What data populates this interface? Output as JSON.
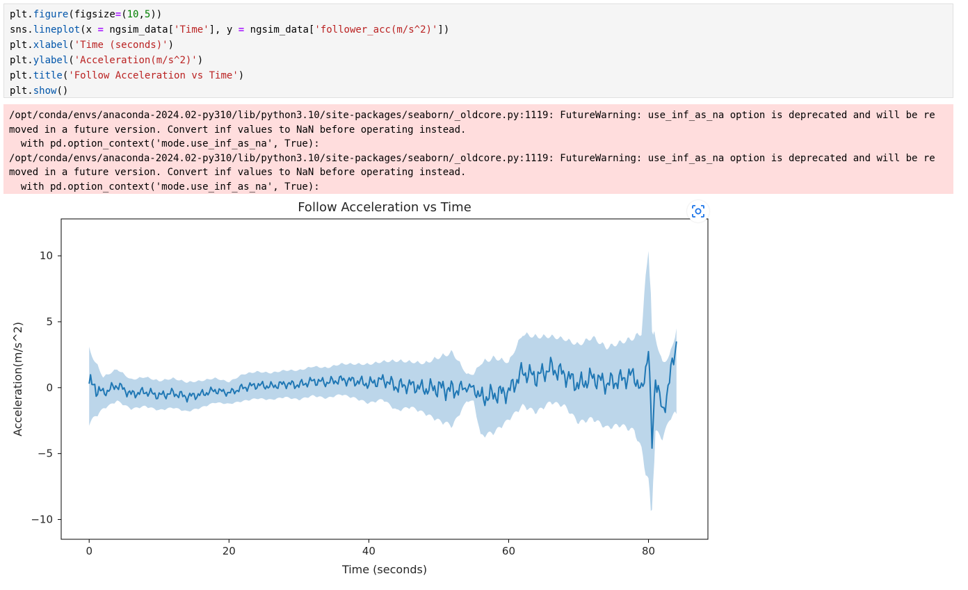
{
  "code_cell": {
    "lines": [
      [
        {
          "t": "plt",
          "c": "obj"
        },
        {
          "t": ".",
          "c": "obj"
        },
        {
          "t": "figure",
          "c": "fn"
        },
        {
          "t": "(figsize",
          "c": "obj"
        },
        {
          "t": "=",
          "c": "op"
        },
        {
          "t": "(",
          "c": "obj"
        },
        {
          "t": "10",
          "c": "num"
        },
        {
          "t": ",",
          "c": "obj"
        },
        {
          "t": "5",
          "c": "num"
        },
        {
          "t": "))",
          "c": "obj"
        }
      ],
      [
        {
          "t": "sns.",
          "c": "obj"
        },
        {
          "t": "lineplot",
          "c": "fn"
        },
        {
          "t": "(x ",
          "c": "obj"
        },
        {
          "t": "=",
          "c": "op"
        },
        {
          "t": " ngsim_data[",
          "c": "obj"
        },
        {
          "t": "'Time'",
          "c": "str"
        },
        {
          "t": "], y ",
          "c": "obj"
        },
        {
          "t": "=",
          "c": "op"
        },
        {
          "t": " ngsim_data[",
          "c": "obj"
        },
        {
          "t": "'follower_acc(m/s^2)'",
          "c": "str"
        },
        {
          "t": "])",
          "c": "obj"
        }
      ],
      [
        {
          "t": "plt.",
          "c": "obj"
        },
        {
          "t": "xlabel",
          "c": "fn"
        },
        {
          "t": "(",
          "c": "obj"
        },
        {
          "t": "'Time (seconds)'",
          "c": "str"
        },
        {
          "t": ")",
          "c": "obj"
        }
      ],
      [
        {
          "t": "plt.",
          "c": "obj"
        },
        {
          "t": "ylabel",
          "c": "fn"
        },
        {
          "t": "(",
          "c": "obj"
        },
        {
          "t": "'Acceleration(m/s^2)'",
          "c": "str"
        },
        {
          "t": ")",
          "c": "obj"
        }
      ],
      [
        {
          "t": "plt.",
          "c": "obj"
        },
        {
          "t": "title",
          "c": "fn"
        },
        {
          "t": "(",
          "c": "obj"
        },
        {
          "t": "'Follow Acceleration vs Time'",
          "c": "str"
        },
        {
          "t": ")",
          "c": "obj"
        }
      ],
      [
        {
          "t": "plt.",
          "c": "obj"
        },
        {
          "t": "show",
          "c": "fn"
        },
        {
          "t": "()",
          "c": "obj"
        }
      ]
    ]
  },
  "stderr": {
    "lines": [
      "/opt/conda/envs/anaconda-2024.02-py310/lib/python3.10/site-packages/seaborn/_oldcore.py:1119: FutureWarning: use_inf_as_na option is deprecated and will be re",
      "moved in a future version. Convert inf values to NaN before operating instead.",
      "  with pd.option_context('mode.use_inf_as_na', True):",
      "/opt/conda/envs/anaconda-2024.02-py310/lib/python3.10/site-packages/seaborn/_oldcore.py:1119: FutureWarning: use_inf_as_na option is deprecated and will be re",
      "moved in a future version. Convert inf values to NaN before operating instead.",
      "  with pd.option_context('mode.use_inf_as_na', True):"
    ]
  },
  "output_toolbar": {
    "screenshot_icon": "camera-screenshot-icon"
  },
  "chart_data": {
    "type": "line",
    "title": "Follow Acceleration vs Time",
    "xlabel": "Time (seconds)",
    "ylabel": "Acceleration(m/s^2)",
    "xlim": [
      -4,
      88.5
    ],
    "ylim": [
      -11.5,
      12.8
    ],
    "xticks": [
      0,
      20,
      40,
      60,
      80
    ],
    "yticks": [
      -10,
      -5,
      0,
      5,
      10
    ],
    "ytick_labels": [
      "−10",
      "−5",
      "0",
      "5",
      "10"
    ],
    "grid": false,
    "line_color": "#1f77b4",
    "band_color": "#a6c8e3",
    "series": [
      {
        "x": [
          0,
          2,
          4,
          6,
          8,
          10,
          12,
          14,
          16,
          18,
          20,
          22,
          24,
          26,
          28,
          30,
          32,
          34,
          36,
          38,
          40,
          42,
          44,
          46,
          48,
          50,
          52,
          54,
          55,
          56,
          58,
          60,
          62,
          64,
          66,
          68,
          70,
          72,
          74,
          76,
          78,
          79,
          80,
          80.5,
          81,
          82,
          83,
          84
        ],
        "y": [
          0.3,
          -0.4,
          0.2,
          -0.5,
          -0.3,
          -0.6,
          -0.4,
          -0.7,
          -0.5,
          -0.2,
          -0.4,
          0.0,
          0.2,
          0.1,
          0.3,
          0.2,
          0.5,
          0.4,
          0.6,
          0.5,
          0.3,
          0.6,
          0.1,
          0.2,
          -0.1,
          0.0,
          -0.2,
          0.0,
          0.0,
          -0.8,
          -0.5,
          -0.3,
          1.2,
          0.8,
          1.5,
          1.0,
          0.2,
          0.8,
          0.3,
          0.6,
          1.0,
          -0.5,
          3.0,
          -4.5,
          1.0,
          -2.0,
          0.5,
          3.5
        ],
        "lower": [
          -2.8,
          -1.6,
          -1.0,
          -1.6,
          -1.4,
          -1.7,
          -1.5,
          -1.8,
          -1.5,
          -1.1,
          -1.2,
          -1.0,
          -0.8,
          -0.9,
          -0.7,
          -0.9,
          -0.6,
          -0.8,
          -0.5,
          -0.8,
          -1.2,
          -0.9,
          -1.8,
          -1.5,
          -2.0,
          -2.6,
          -3.0,
          -1.0,
          -1.0,
          -3.8,
          -3.5,
          -2.5,
          -1.5,
          -2.0,
          -1.2,
          -1.5,
          -2.8,
          -2.5,
          -3.2,
          -3.0,
          -3.5,
          -5.0,
          -8.0,
          -10.0,
          -3.5,
          -4.0,
          -2.5,
          -2.0
        ],
        "upper": [
          3.0,
          0.8,
          1.4,
          0.6,
          0.8,
          0.5,
          0.7,
          0.4,
          0.5,
          0.7,
          0.4,
          1.0,
          1.2,
          1.1,
          1.3,
          1.3,
          1.6,
          1.5,
          1.8,
          1.8,
          1.8,
          2.0,
          2.1,
          2.0,
          1.9,
          2.4,
          2.8,
          1.0,
          1.0,
          2.0,
          2.4,
          2.0,
          4.2,
          4.0,
          4.0,
          3.8,
          3.4,
          4.0,
          3.2,
          3.6,
          4.0,
          4.5,
          11.5,
          5.0,
          4.0,
          2.0,
          2.5,
          4.5
        ]
      }
    ]
  }
}
